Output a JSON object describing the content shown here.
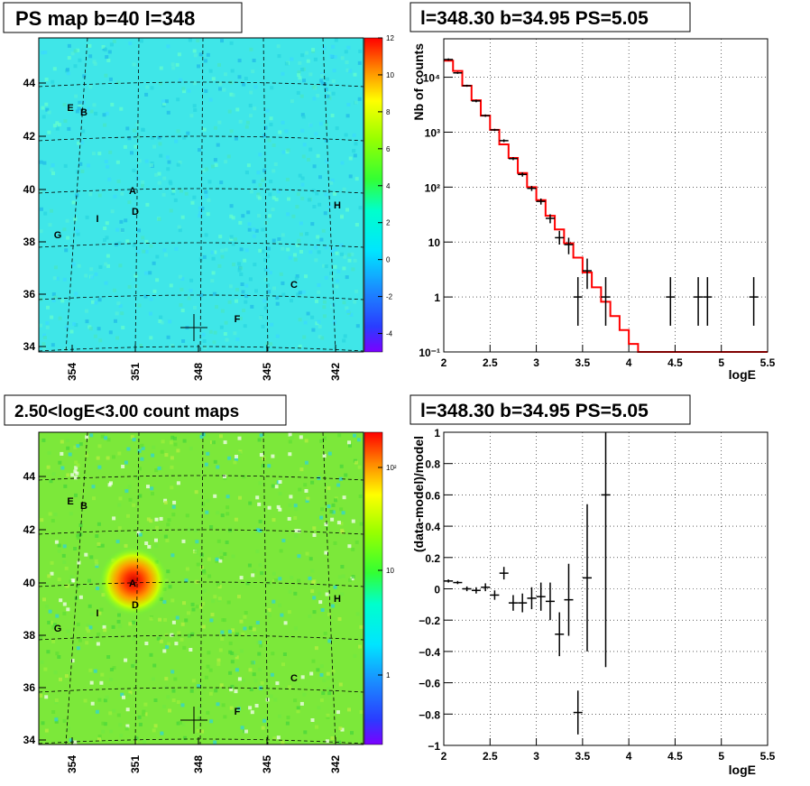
{
  "colors": {
    "model_line": "#ff0000",
    "data_marker": "#000000",
    "grid": "#000000"
  },
  "chart_data": [
    {
      "type": "heatmap",
      "title": "PS map b=40 l=348",
      "x_ticks": [
        "354",
        "351",
        "348",
        "345",
        "342"
      ],
      "y_ticks": [
        "34",
        "36",
        "38",
        "40",
        "42",
        "44"
      ],
      "colorbar": {
        "scale": "linear",
        "range": [
          -5,
          12
        ],
        "ticks": [
          "12",
          "10",
          "8",
          "6",
          "4",
          "2",
          "0",
          "-2",
          "-4"
        ]
      },
      "sources": [
        "A",
        "B",
        "C",
        "D",
        "E",
        "F",
        "G",
        "H",
        "I"
      ],
      "marker": "+"
    },
    {
      "type": "line",
      "title": "l=348.30 b=34.95 PS=5.05",
      "xlabel": "logE",
      "ylabel": "Nb of counts",
      "y_scale": "log",
      "xlim": [
        2,
        5.5
      ],
      "ylim": [
        0.1,
        50000
      ],
      "x_ticks": [
        "2",
        "2.5",
        "3",
        "3.5",
        "4",
        "4.5",
        "5",
        "5.5"
      ],
      "y_ticks": [
        "10⁻¹",
        "1",
        "10",
        "10²",
        "10³",
        "10⁴"
      ],
      "grid": true,
      "model_steps": {
        "edges": [
          2,
          2.1,
          2.2,
          2.3,
          2.4,
          2.5,
          2.6,
          2.7,
          2.8,
          2.9,
          3.0,
          3.1,
          3.2,
          3.3,
          3.4,
          3.5,
          3.6,
          3.7,
          3.8,
          3.9,
          4.0,
          4.1,
          4.2,
          4.3,
          4.4,
          4.5,
          4.6,
          4.7,
          4.8,
          4.9,
          5.0,
          5.1,
          5.2,
          5.3,
          5.4,
          5.5
        ],
        "values": [
          20000,
          13000,
          7000,
          3800,
          2000,
          1100,
          600,
          340,
          180,
          100,
          58,
          30,
          17,
          9.5,
          5.2,
          2.8,
          1.5,
          0.82,
          0.45,
          0.25,
          0.14,
          0.1,
          0.1,
          0.1,
          0.1,
          0.1,
          0.1,
          0.1,
          0.1,
          0.1,
          0.1,
          0.1,
          0.1,
          0.1,
          0.1
        ]
      },
      "data_points": [
        {
          "x": 2.05,
          "y": 21000,
          "ylo": 20000,
          "yhi": 22000
        },
        {
          "x": 2.15,
          "y": 12000,
          "ylo": 11500,
          "yhi": 12500
        },
        {
          "x": 2.25,
          "y": 7000,
          "ylo": 6700,
          "yhi": 7300
        },
        {
          "x": 2.35,
          "y": 3700,
          "ylo": 3500,
          "yhi": 3900
        },
        {
          "x": 2.45,
          "y": 2000,
          "ylo": 1900,
          "yhi": 2100
        },
        {
          "x": 2.55,
          "y": 1100,
          "ylo": 1050,
          "yhi": 1150
        },
        {
          "x": 2.65,
          "y": 700,
          "ylo": 660,
          "yhi": 740
        },
        {
          "x": 2.75,
          "y": 330,
          "ylo": 310,
          "yhi": 350
        },
        {
          "x": 2.85,
          "y": 170,
          "ylo": 155,
          "yhi": 185
        },
        {
          "x": 2.95,
          "y": 95,
          "ylo": 85,
          "yhi": 105
        },
        {
          "x": 3.05,
          "y": 55,
          "ylo": 48,
          "yhi": 62
        },
        {
          "x": 3.15,
          "y": 27,
          "ylo": 22,
          "yhi": 32
        },
        {
          "x": 3.25,
          "y": 12,
          "ylo": 9,
          "yhi": 16
        },
        {
          "x": 3.35,
          "y": 9,
          "ylo": 6,
          "yhi": 12
        },
        {
          "x": 3.45,
          "y": 1,
          "ylo": 0.3,
          "yhi": 2.3
        },
        {
          "x": 3.55,
          "y": 3,
          "ylo": 1.4,
          "yhi": 5
        },
        {
          "x": 3.75,
          "y": 1,
          "ylo": 0.3,
          "yhi": 2.3
        },
        {
          "x": 4.45,
          "y": 1,
          "ylo": 0.3,
          "yhi": 2.3
        },
        {
          "x": 4.75,
          "y": 1,
          "ylo": 0.3,
          "yhi": 2.3
        },
        {
          "x": 4.85,
          "y": 1,
          "ylo": 0.3,
          "yhi": 2.3
        },
        {
          "x": 5.35,
          "y": 1,
          "ylo": 0.3,
          "yhi": 2.3
        }
      ]
    },
    {
      "type": "heatmap",
      "title": "2.50<logE<3.00 count maps",
      "x_ticks": [
        "354",
        "351",
        "348",
        "345",
        "342"
      ],
      "y_ticks": [
        "34",
        "36",
        "38",
        "40",
        "42",
        "44"
      ],
      "colorbar": {
        "scale": "log",
        "ticks": [
          "10²",
          "10",
          "1"
        ]
      },
      "sources": [
        "A",
        "B",
        "C",
        "D",
        "E",
        "F",
        "G",
        "H",
        "I"
      ],
      "marker": "+"
    },
    {
      "type": "scatter",
      "title": "l=348.30 b=34.95 PS=5.05",
      "xlabel": "logE",
      "ylabel": "(data-model)/model",
      "xlim": [
        2,
        5.5
      ],
      "ylim": [
        -1,
        1
      ],
      "x_ticks": [
        "2",
        "2.5",
        "3",
        "3.5",
        "4",
        "4.5",
        "5",
        "5.5"
      ],
      "y_ticks": [
        "−1",
        "−0.8",
        "−0.6",
        "−0.4",
        "−0.2",
        "0",
        "0.2",
        "0.4",
        "0.6",
        "0.8",
        "1"
      ],
      "grid": true,
      "data_points": [
        {
          "x": 2.05,
          "y": 0.05,
          "err": 0.01
        },
        {
          "x": 2.15,
          "y": 0.04,
          "err": 0.01
        },
        {
          "x": 2.25,
          "y": 0.0,
          "err": 0.015
        },
        {
          "x": 2.35,
          "y": -0.01,
          "err": 0.02
        },
        {
          "x": 2.45,
          "y": 0.01,
          "err": 0.025
        },
        {
          "x": 2.55,
          "y": -0.04,
          "err": 0.03
        },
        {
          "x": 2.65,
          "y": 0.1,
          "err": 0.04
        },
        {
          "x": 2.75,
          "y": -0.09,
          "err": 0.05
        },
        {
          "x": 2.85,
          "y": -0.09,
          "err": 0.06
        },
        {
          "x": 2.95,
          "y": -0.06,
          "err": 0.07
        },
        {
          "x": 3.05,
          "y": -0.05,
          "err": 0.09
        },
        {
          "x": 3.15,
          "y": -0.08,
          "err": 0.12
        },
        {
          "x": 3.25,
          "y": -0.29,
          "err": 0.14
        },
        {
          "x": 3.35,
          "y": -0.07,
          "err": 0.23
        },
        {
          "x": 3.45,
          "y": -0.79,
          "err": 0.14
        },
        {
          "x": 3.55,
          "y": 0.07,
          "err": 0.47
        },
        {
          "x": 3.75,
          "y": 0.6,
          "err": 1.1
        }
      ]
    }
  ]
}
